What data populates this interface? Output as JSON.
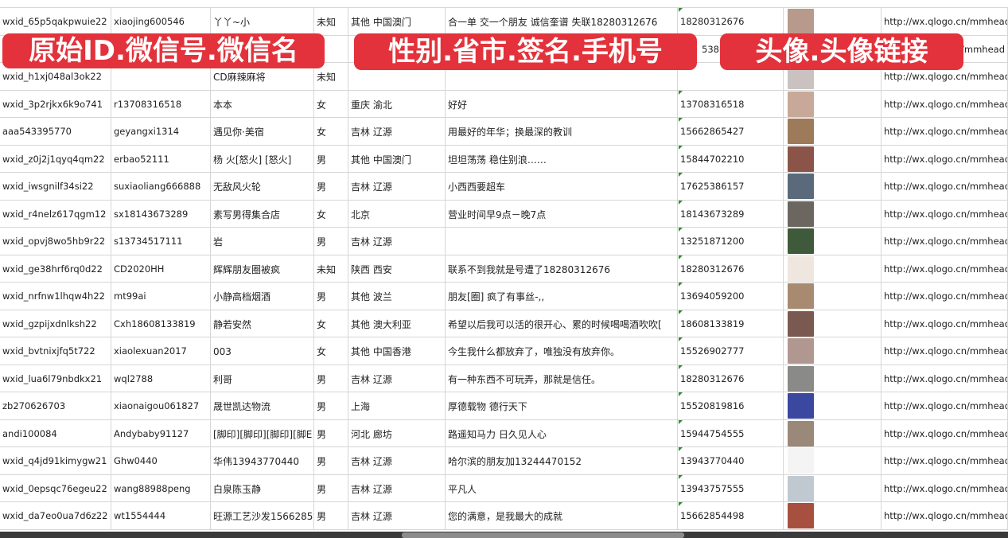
{
  "banners": {
    "ids": "原始ID.微信号.微信名",
    "profile": "性别.省市.签名.手机号",
    "avatar": "头像.头像链接"
  },
  "colors": {
    "banner": "#e3323b",
    "grid": "#d6d6d6",
    "marker": "#2e8b2e"
  },
  "rows": [
    {
      "id": "wxid_65p5qakpwuie22",
      "wechat": "xiaojing600546",
      "name": "丫丫~小",
      "gender": "未知",
      "region": "其他 中国澳门",
      "sign": "合一单 交一个朋友 诚信奎谱 失联18280312676",
      "phone": "18280312676",
      "url": "http://wx.qlogo.cn/mmhead",
      "avatar": "#b89a8c"
    },
    {
      "id": "",
      "wechat": "",
      "name": "",
      "gender": "",
      "region": "",
      "sign": "",
      "phone": "5386",
      "url": "/mmhead",
      "avatar": "#6a7fa8"
    },
    {
      "id": "wxid_h1xj048al3ok22",
      "wechat": "",
      "name": "CD麻辣麻将",
      "gender": "未知",
      "region": "",
      "sign": "",
      "phone": "",
      "url": "http://wx.qlogo.cn/mmhead",
      "avatar": "#c9c2c0"
    },
    {
      "id": "wxid_3p2rjkx6k9o741",
      "wechat": "r13708316518",
      "name": "本本",
      "gender": "女",
      "region": "重庆 渝北",
      "sign": "好好",
      "phone": "13708316518",
      "url": "http://wx.qlogo.cn/mmhead",
      "avatar": "#c8a898"
    },
    {
      "id": "aaa543395770",
      "wechat": "geyangxi1314",
      "name": "遇见你·美宿",
      "gender": "女",
      "region": "吉林 辽源",
      "sign": "用最好的年华；换最深的教训",
      "phone": "15662865427",
      "url": "http://wx.qlogo.cn/mmhead",
      "avatar": "#9c7a5a"
    },
    {
      "id": "wxid_z0j2j1qyq4qm22",
      "wechat": "erbao52111",
      "name": "杨 火[怒火] [怒火]",
      "gender": "男",
      "region": "其他 中国澳门",
      "sign": "坦坦荡荡 稳住别浪……",
      "phone": "15844702210",
      "url": "http://wx.qlogo.cn/mmhead",
      "avatar": "#8a5548"
    },
    {
      "id": "wxid_iwsgnilf34si22",
      "wechat": "suxiaoliang666888",
      "name": "无敌风火轮",
      "gender": "男",
      "region": "吉林 辽源",
      "sign": "小西西要超车",
      "phone": "17625386157",
      "url": "http://wx.qlogo.cn/mmhead",
      "avatar": "#5a6a7a"
    },
    {
      "id": "wxid_r4nelz617qgm12",
      "wechat": "sx18143673289",
      "name": "素写男得集合店",
      "gender": "女",
      "region": "北京",
      "sign": "营业时间早9点－晚7点",
      "phone": "18143673289",
      "url": "http://wx.qlogo.cn/mmhead",
      "avatar": "#6b6660"
    },
    {
      "id": "wxid_opvj8wo5hb9r22",
      "wechat": "s13734517111",
      "name": "岩",
      "gender": "男",
      "region": "吉林 辽源",
      "sign": "",
      "phone": "13251871200",
      "url": "http://wx.qlogo.cn/mmhead",
      "avatar": "#3f5a3a"
    },
    {
      "id": "wxid_ge38hrf6rq0d22",
      "wechat": "CD2020HH",
      "name": "辉辉朋友圈被疯",
      "gender": "未知",
      "region": "陕西 西安",
      "sign": "联系不到我就是号遭了18280312676",
      "phone": "18280312676",
      "url": "http://wx.qlogo.cn/mmhead",
      "avatar": "#f0e6e0"
    },
    {
      "id": "wxid_nrfnw1lhqw4h22",
      "wechat": "mt99ai",
      "name": "小静高档烟酒",
      "gender": "男",
      "region": "其他 波兰",
      "sign": "朋友[圈] 疯了有事丝-,,",
      "phone": "13694059200",
      "url": "http://wx.qlogo.cn/mmhead",
      "avatar": "#a88a70"
    },
    {
      "id": "wxid_gzpijxdnlksh22",
      "wechat": "Cxh18608133819",
      "name": "静若安然",
      "gender": "女",
      "region": "其他 澳大利亚",
      "sign": "希望以后我可以活的很开心、累的时候喝喝酒吹吹[",
      "phone": "18608133819",
      "url": "http://wx.qlogo.cn/mmhead",
      "avatar": "#7a5a50"
    },
    {
      "id": "wxid_bvtnixjfq5t722",
      "wechat": "xiaolexuan2017",
      "name": "003",
      "gender": "女",
      "region": "其他 中国香港",
      "sign": "今生我什么都放弃了，唯独没有放弃你。",
      "phone": "15526902777",
      "url": "http://wx.qlogo.cn/mmhead",
      "avatar": "#b09890"
    },
    {
      "id": "wxid_lua6l79nbdkx21",
      "wechat": "wql2788",
      "name": "利哥",
      "gender": "男",
      "region": "吉林 辽源",
      "sign": "有一种东西不可玩弄，那就是信任。",
      "phone": "18280312676",
      "url": "http://wx.qlogo.cn/mmhead",
      "avatar": "#8a8a88"
    },
    {
      "id": "zb270626703",
      "wechat": "xiaonaigou061827",
      "name": "晟世凯达物流",
      "gender": "男",
      "region": "上海",
      "sign": "厚德载物 德行天下",
      "phone": "15520819816",
      "url": "http://wx.qlogo.cn/mmhead",
      "avatar": "#3a48a0"
    },
    {
      "id": "andi100084",
      "wechat": "Andybaby91127",
      "name": "[脚印][脚印][脚印][脚E",
      "gender": "男",
      "region": "河北 廊坊",
      "sign": "路遥知马力 日久见人心",
      "phone": "15944754555",
      "url": "http://wx.qlogo.cn/mmhead",
      "avatar": "#9a8878"
    },
    {
      "id": "wxid_q4jd91kimygw21",
      "wechat": "Ghw0440",
      "name": "华伟13943770440",
      "gender": "男",
      "region": "吉林 辽源",
      "sign": "哈尔滨的朋友加13244470152",
      "phone": "13943770440",
      "url": "http://wx.qlogo.cn/mmhead",
      "avatar": "#f4f4f4"
    },
    {
      "id": "wxid_0epsqc76egeu22",
      "wechat": "wang88988peng",
      "name": "白泉陈玉静",
      "gender": "男",
      "region": "吉林 辽源",
      "sign": "平凡人",
      "phone": "13943757555",
      "url": "http://wx.qlogo.cn/mmhead",
      "avatar": "#c0c8d0"
    },
    {
      "id": "wxid_da7eo0ua7d6z22",
      "wechat": "wt1554444",
      "name": "旺源工艺沙发15662854",
      "gender": "男",
      "region": "吉林 辽源",
      "sign": "您的满意，是我最大的成就",
      "phone": "15662854498",
      "url": "http://wx.qlogo.cn/mmhead",
      "avatar": "#a85040"
    }
  ]
}
